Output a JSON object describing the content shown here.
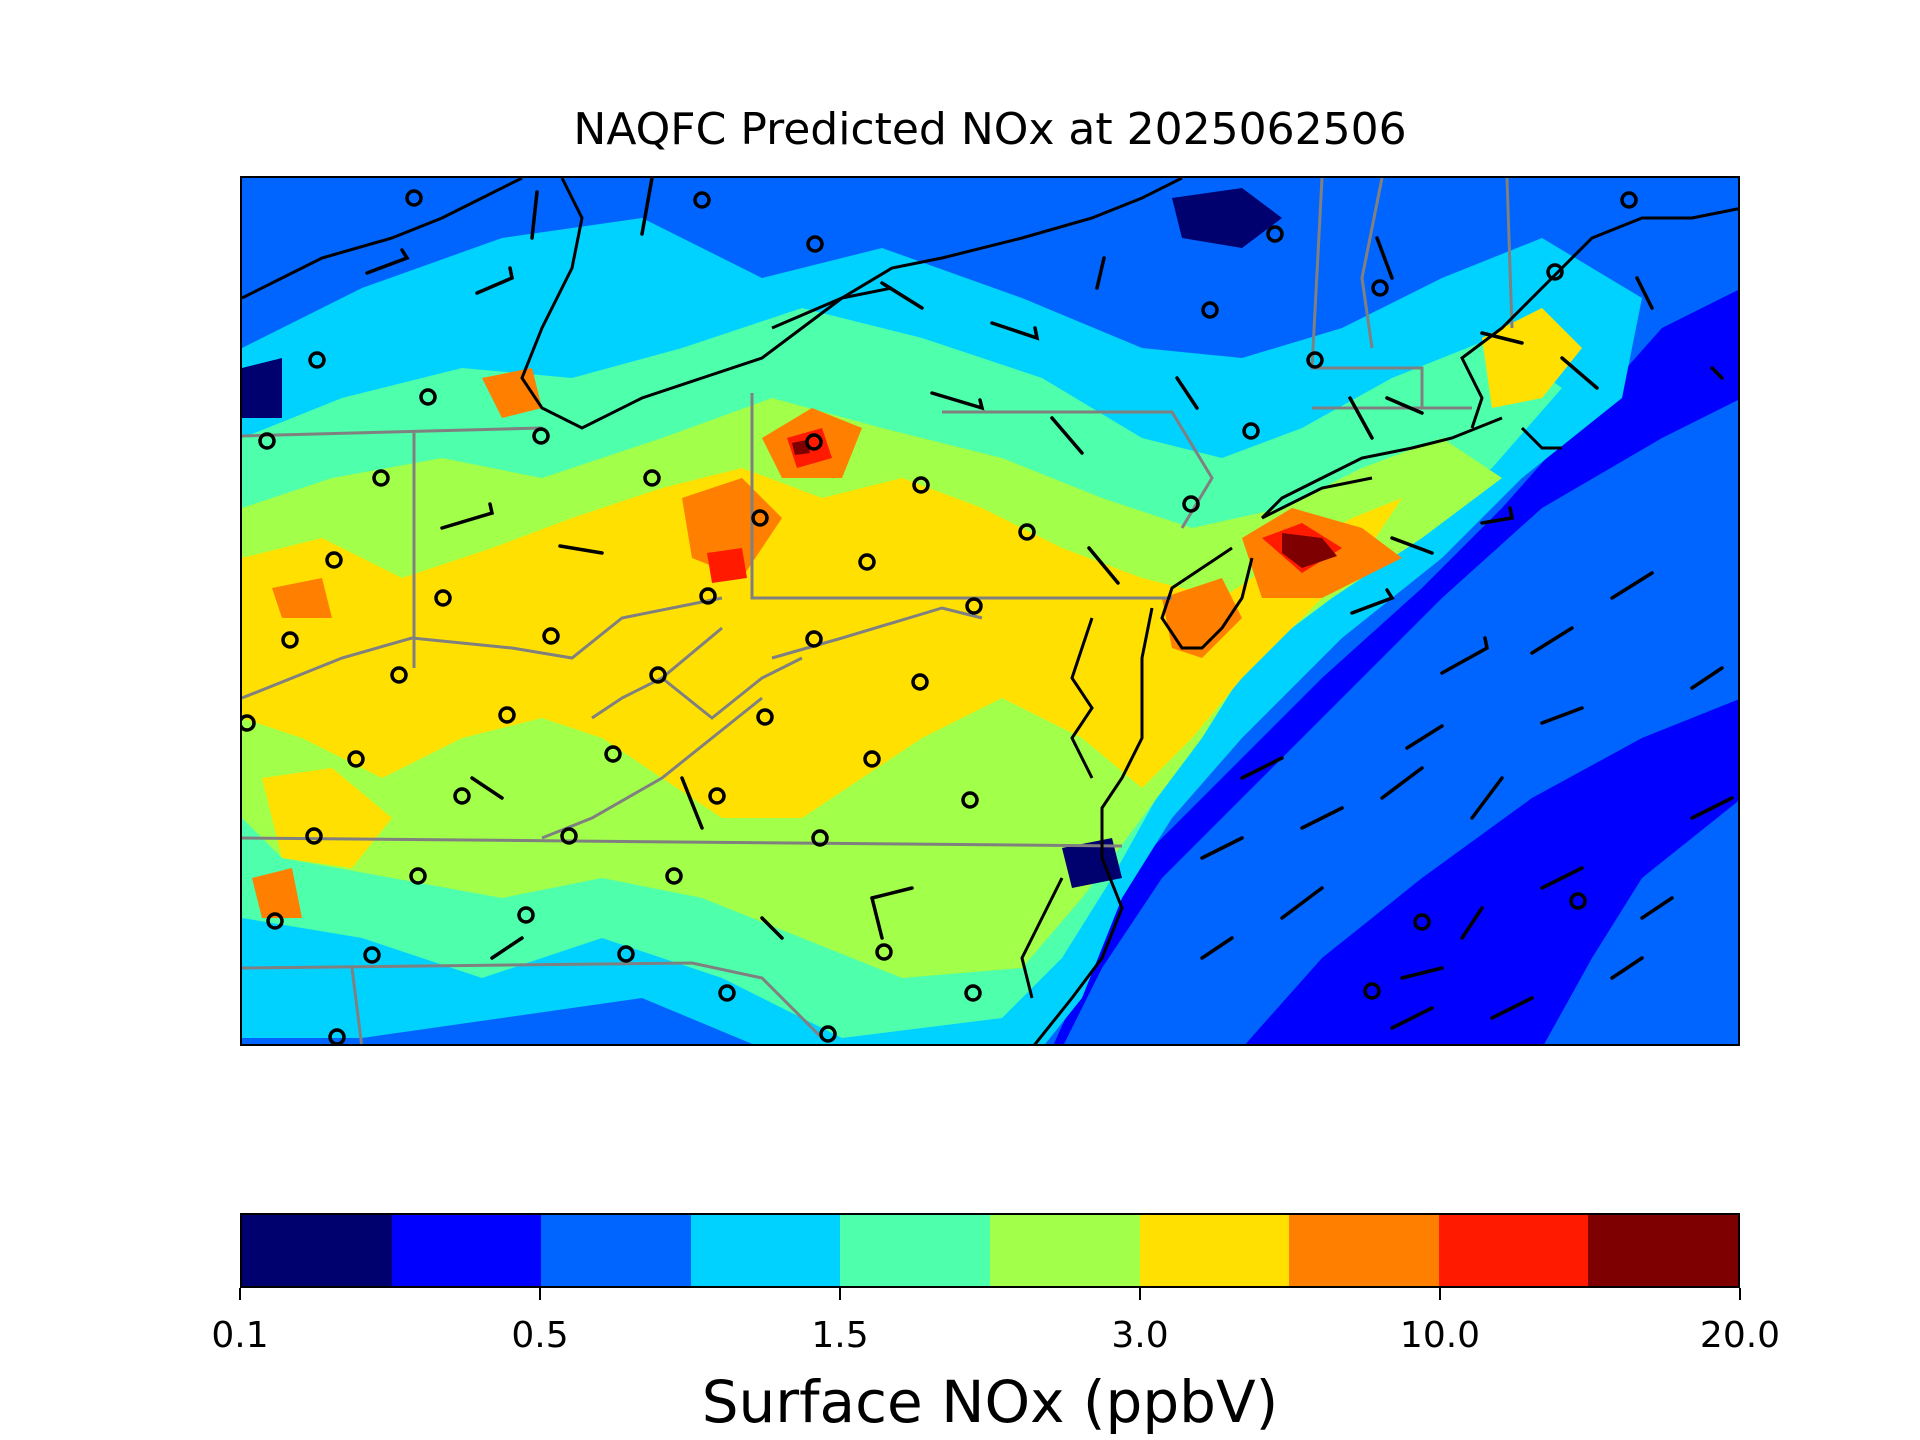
{
  "title": "NAQFC Predicted NOx at 2025062506",
  "colorbar": {
    "label": "Surface NOx (ppbV)",
    "colors": [
      "#00006e",
      "#0000ff",
      "#0064ff",
      "#00d2ff",
      "#4effac",
      "#a2ff4a",
      "#ffe000",
      "#ff7f00",
      "#ff1a00",
      "#7f0000"
    ],
    "tick_labels": [
      "0.1",
      "0.5",
      "1.5",
      "3.0",
      "10.0",
      "20.0"
    ],
    "tick_positions_index": [
      0,
      2,
      4,
      6,
      8,
      10
    ]
  },
  "map": {
    "background_level": "#0000ff",
    "land_blobs": [
      {
        "color": "#0064ff",
        "level": 3
      },
      {
        "color": "#00d2ff",
        "level": 4
      },
      {
        "color": "#4effac",
        "level": 5
      },
      {
        "color": "#a2ff4a",
        "level": 6
      },
      {
        "color": "#ffe000",
        "level": 7
      },
      {
        "color": "#ff7f00",
        "level": 8
      },
      {
        "color": "#ff1a00",
        "level": 9
      },
      {
        "color": "#7f0000",
        "level": 10
      }
    ],
    "station_markers": "circles",
    "wind_barbs": "black",
    "state_borders": "gray",
    "coastline": "black"
  }
}
